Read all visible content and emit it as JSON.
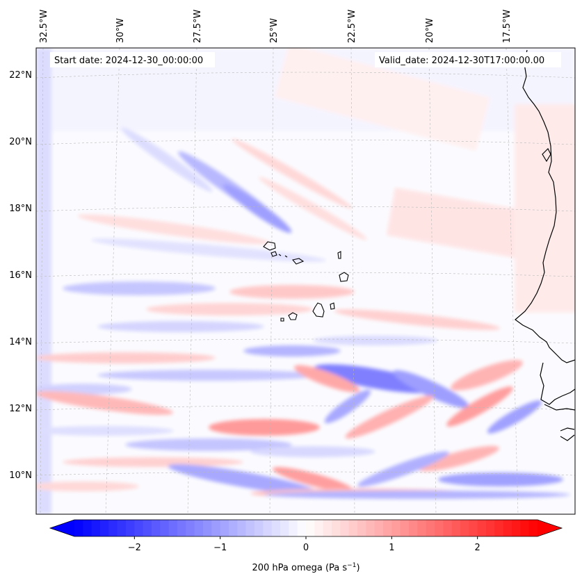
{
  "header": {
    "start_date": "Start date: 2024-12-30_00:00:00",
    "valid_date": "Valid_date: 2024-12-30T17:00:00.00"
  },
  "map": {
    "lon_labels": [
      "32.5°W",
      "30°W",
      "27.5°W",
      "25°W",
      "22.5°W",
      "20°W",
      "17.5°W"
    ],
    "lat_labels": [
      "22°N",
      "20°N",
      "18°N",
      "16°N",
      "14°N",
      "12°N",
      "10°N"
    ],
    "field": "200 hPa omega",
    "region": "Cape Verde / West African coast"
  },
  "colorbar": {
    "ticks": [
      "−2",
      "−1",
      "0",
      "1",
      "2"
    ],
    "tick_values": [
      -2,
      -1,
      0,
      1,
      2
    ],
    "range": [
      -2.7,
      2.7
    ],
    "label_main": "200 hPa omega (Pa s",
    "label_exp": "−1",
    "label_close": ")",
    "colors": {
      "negative": "#0000ff",
      "zero": "#ffffff",
      "positive": "#ff0000"
    }
  }
}
